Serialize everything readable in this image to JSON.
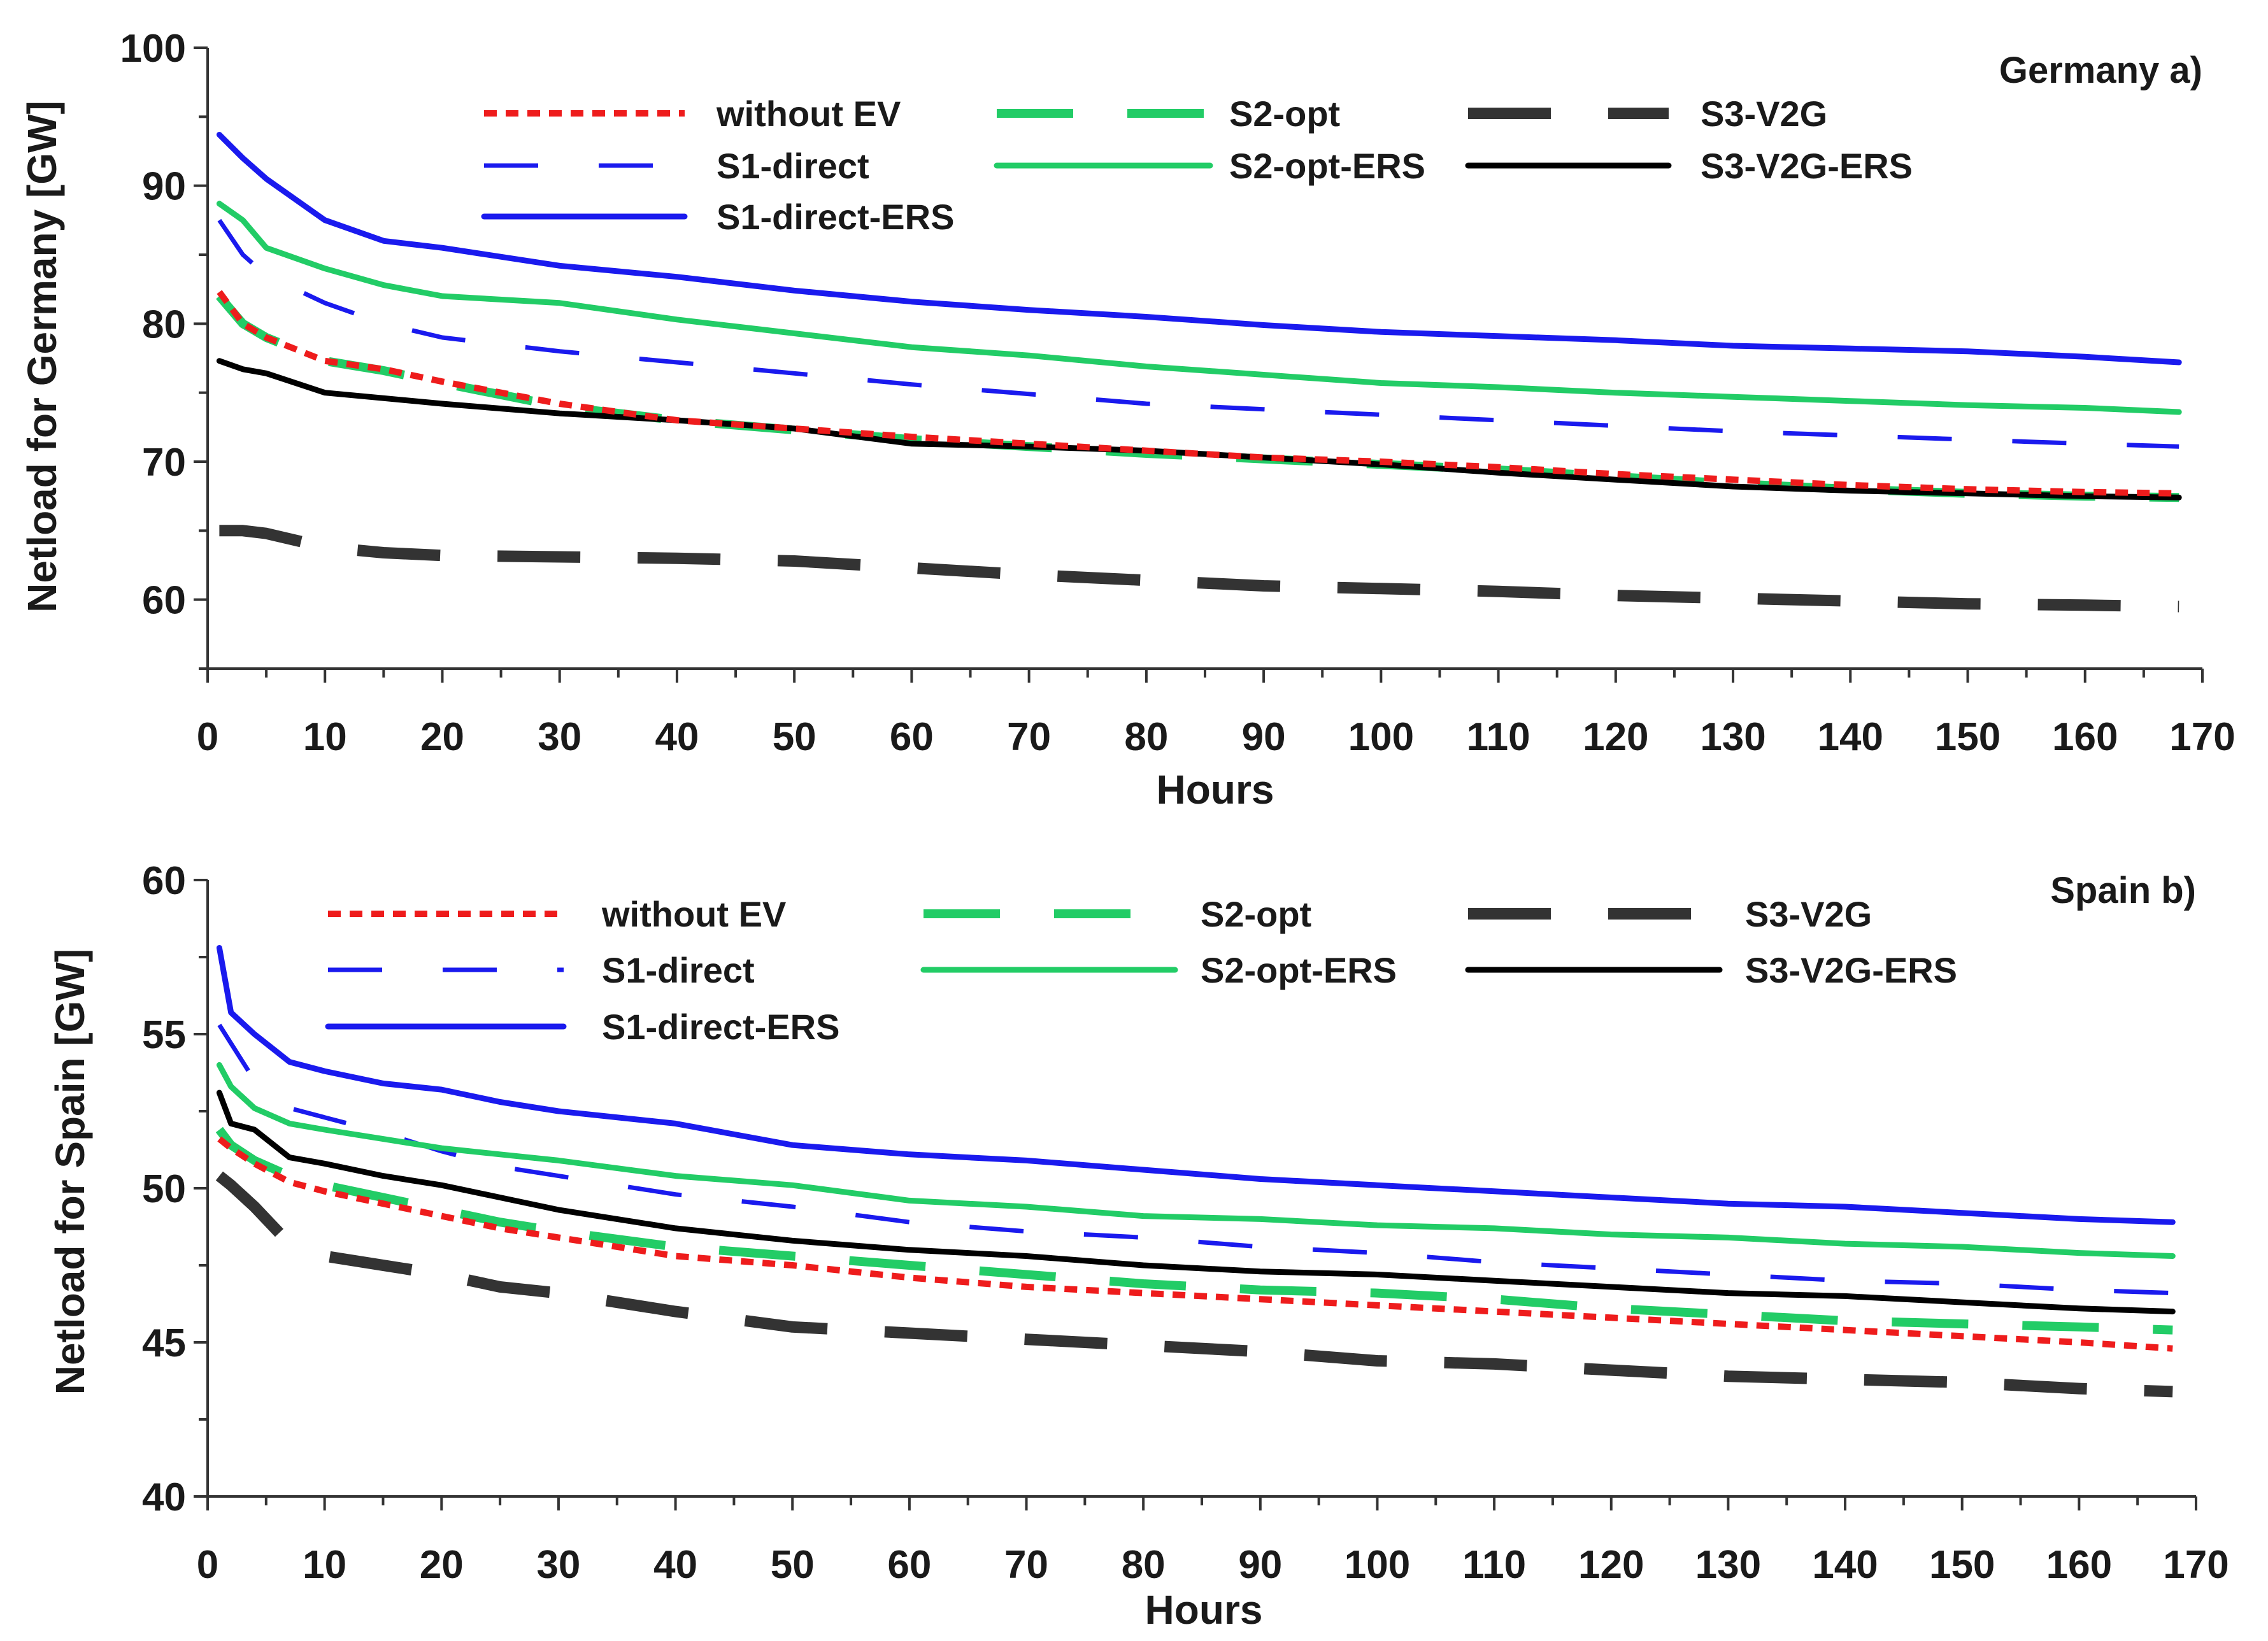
{
  "chart_data": [
    {
      "type": "line",
      "title": "Germany a)",
      "xlabel": "Hours",
      "ylabel": "Netload for Germany [GW]",
      "xlim": [
        0,
        170
      ],
      "ylim": [
        55,
        100
      ],
      "xticks": [
        0,
        10,
        20,
        30,
        40,
        50,
        60,
        70,
        80,
        90,
        100,
        110,
        120,
        130,
        140,
        150,
        160,
        170
      ],
      "yticks": [
        60,
        70,
        80,
        90,
        100
      ],
      "legend_position": "top",
      "x": [
        1,
        3,
        5,
        10,
        15,
        20,
        30,
        40,
        50,
        60,
        70,
        80,
        90,
        100,
        110,
        120,
        130,
        140,
        150,
        160,
        168
      ],
      "series": [
        {
          "name": "without EV",
          "color": "#ee1c1c",
          "style": "dotted",
          "values": [
            82.3,
            80.0,
            79.0,
            77.3,
            76.7,
            75.8,
            74.2,
            73.0,
            72.4,
            71.8,
            71.3,
            70.8,
            70.3,
            70.0,
            69.6,
            69.1,
            68.7,
            68.3,
            68.0,
            67.8,
            67.7
          ]
        },
        {
          "name": "S1-direct",
          "color": "#1a1aee",
          "style": "dashed",
          "values": [
            87.5,
            85.0,
            83.5,
            81.5,
            80.0,
            79.0,
            78.0,
            77.2,
            76.4,
            75.6,
            74.9,
            74.2,
            73.8,
            73.4,
            73.0,
            72.6,
            72.2,
            71.9,
            71.6,
            71.3,
            71.1
          ]
        },
        {
          "name": "S1-direct-ERS",
          "color": "#1a1aee",
          "style": "solid",
          "values": [
            93.7,
            92.0,
            90.5,
            87.5,
            86.0,
            85.5,
            84.2,
            83.4,
            82.4,
            81.6,
            81.0,
            80.5,
            79.9,
            79.4,
            79.1,
            78.8,
            78.4,
            78.2,
            78.0,
            77.6,
            77.2
          ]
        },
        {
          "name": "S2-opt",
          "color": "#22cc66",
          "style": "longdash",
          "values": [
            82.0,
            80.0,
            79.0,
            77.3,
            76.6,
            75.7,
            74.0,
            73.0,
            72.3,
            71.6,
            71.1,
            70.6,
            70.2,
            69.8,
            69.4,
            68.9,
            68.4,
            68.0,
            67.7,
            67.5,
            67.4
          ]
        },
        {
          "name": "S2-opt-ERS",
          "color": "#22cc66",
          "style": "solid",
          "values": [
            88.7,
            87.5,
            85.5,
            84.0,
            82.8,
            82.0,
            81.5,
            80.3,
            79.3,
            78.3,
            77.7,
            76.9,
            76.3,
            75.7,
            75.4,
            75.0,
            74.7,
            74.4,
            74.1,
            73.9,
            73.6
          ]
        },
        {
          "name": "S3-V2G",
          "color": "#333333",
          "style": "longdash-thick",
          "values": [
            65.0,
            65.0,
            64.8,
            63.8,
            63.4,
            63.2,
            63.1,
            63.0,
            62.8,
            62.3,
            61.8,
            61.4,
            61.0,
            60.8,
            60.6,
            60.3,
            60.1,
            59.9,
            59.7,
            59.6,
            59.5
          ]
        },
        {
          "name": "S3-V2G-ERS",
          "color": "#000000",
          "style": "solid",
          "values": [
            77.3,
            76.7,
            76.4,
            75.0,
            74.6,
            74.2,
            73.5,
            73.0,
            72.4,
            71.3,
            71.1,
            70.8,
            70.3,
            69.8,
            69.2,
            68.7,
            68.2,
            67.9,
            67.7,
            67.5,
            67.4
          ]
        }
      ]
    },
    {
      "type": "line",
      "title": "Spain b)",
      "xlabel": "Hours",
      "ylabel": "Netload for Spain [GW]",
      "xlim": [
        0,
        170
      ],
      "ylim": [
        40,
        60
      ],
      "xticks": [
        0,
        10,
        20,
        30,
        40,
        50,
        60,
        70,
        80,
        90,
        100,
        110,
        120,
        130,
        140,
        150,
        160,
        170
      ],
      "yticks": [
        40,
        45,
        50,
        55,
        60
      ],
      "legend_position": "top",
      "x": [
        1,
        2,
        4,
        7,
        10,
        15,
        20,
        25,
        30,
        40,
        50,
        60,
        70,
        80,
        90,
        100,
        110,
        120,
        130,
        140,
        150,
        160,
        168
      ],
      "series": [
        {
          "name": "without EV",
          "color": "#ee1c1c",
          "style": "dotted",
          "values": [
            51.6,
            51.3,
            50.8,
            50.2,
            49.9,
            49.5,
            49.1,
            48.7,
            48.4,
            47.8,
            47.5,
            47.1,
            46.8,
            46.6,
            46.4,
            46.2,
            46.0,
            45.8,
            45.6,
            45.4,
            45.2,
            45.0,
            44.8
          ]
        },
        {
          "name": "S1-direct",
          "color": "#1a1aee",
          "style": "dashed",
          "values": [
            55.3,
            54.7,
            53.5,
            52.6,
            52.3,
            51.8,
            51.2,
            50.7,
            50.4,
            49.8,
            49.4,
            48.9,
            48.6,
            48.4,
            48.1,
            47.9,
            47.6,
            47.4,
            47.2,
            47.0,
            46.9,
            46.7,
            46.6
          ]
        },
        {
          "name": "S1-direct-ERS",
          "color": "#1a1aee",
          "style": "solid",
          "values": [
            57.8,
            55.7,
            55.0,
            54.1,
            53.8,
            53.4,
            53.2,
            52.8,
            52.5,
            52.1,
            51.4,
            51.1,
            50.9,
            50.6,
            50.3,
            50.1,
            49.9,
            49.7,
            49.5,
            49.4,
            49.2,
            49.0,
            48.9
          ]
        },
        {
          "name": "S2-opt",
          "color": "#22cc66",
          "style": "longdash",
          "values": [
            51.9,
            51.4,
            50.9,
            50.4,
            50.1,
            49.7,
            49.3,
            48.9,
            48.6,
            48.1,
            47.8,
            47.5,
            47.2,
            46.9,
            46.7,
            46.6,
            46.4,
            46.1,
            45.9,
            45.7,
            45.6,
            45.5,
            45.4
          ]
        },
        {
          "name": "S2-opt-ERS",
          "color": "#22cc66",
          "style": "solid",
          "values": [
            54.0,
            53.3,
            52.6,
            52.1,
            51.9,
            51.6,
            51.3,
            51.1,
            50.9,
            50.4,
            50.1,
            49.6,
            49.4,
            49.1,
            49.0,
            48.8,
            48.7,
            48.5,
            48.4,
            48.2,
            48.1,
            47.9,
            47.8
          ]
        },
        {
          "name": "S3-V2G",
          "color": "#333333",
          "style": "longdash-thick",
          "values": [
            50.4,
            50.1,
            49.4,
            48.2,
            47.8,
            47.5,
            47.2,
            46.8,
            46.6,
            46.0,
            45.5,
            45.3,
            45.1,
            44.9,
            44.7,
            44.4,
            44.3,
            44.1,
            43.9,
            43.8,
            43.7,
            43.5,
            43.4
          ]
        },
        {
          "name": "S3-V2G-ERS",
          "color": "#000000",
          "style": "solid",
          "values": [
            53.1,
            52.1,
            51.9,
            51.0,
            50.8,
            50.4,
            50.1,
            49.7,
            49.3,
            48.7,
            48.3,
            48.0,
            47.8,
            47.5,
            47.3,
            47.2,
            47.0,
            46.8,
            46.6,
            46.5,
            46.3,
            46.1,
            46.0
          ]
        }
      ]
    }
  ]
}
